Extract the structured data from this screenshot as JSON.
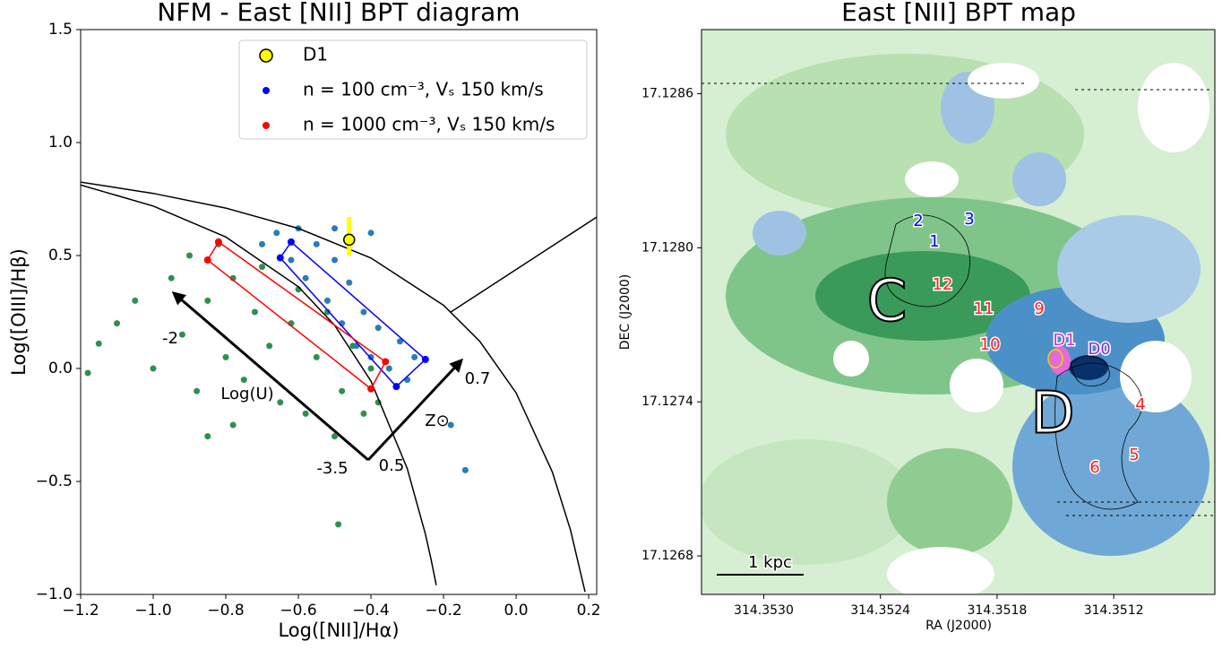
{
  "chart_data": [
    {
      "type": "scatter",
      "title": "NFM - East [NII] BPT diagram",
      "x_label": "Log([NII]/Hα)",
      "y_label": "Log([OIII]/Hβ)",
      "xlim": [
        -1.2,
        0.222
      ],
      "ylim": [
        -1.0,
        1.5
      ],
      "xticks": [
        {
          "value": -1.2,
          "label": "−1.2"
        },
        {
          "value": -1.0,
          "label": "−1.0"
        },
        {
          "value": -0.8,
          "label": "−0.8"
        },
        {
          "value": -0.6,
          "label": "−0.6"
        },
        {
          "value": -0.4,
          "label": "−0.4"
        },
        {
          "value": -0.2,
          "label": "−0.2"
        },
        {
          "value": 0.0,
          "label": "0.0"
        },
        0.2
      ],
      "yticks": [
        {
          "value": -1.0,
          "label": "−1.0"
        },
        {
          "value": -0.5,
          "label": "−0.5"
        },
        {
          "value": 0.0,
          "label": "0.0"
        },
        0.5,
        {
          "value": 1.0,
          "label": "1.0"
        },
        1.5
      ],
      "legend": "upper right",
      "curves": [
        {
          "color": "#000000",
          "x": [
            -1.2,
            -1.0,
            -0.8,
            -0.6,
            -0.4,
            -0.2,
            -0.1,
            0.0,
            0.1,
            0.15,
            0.19
          ],
          "values": [
            0.825,
            0.775,
            0.71,
            0.62,
            0.489,
            0.28,
            0.12,
            -0.108,
            -0.459,
            -0.716,
            -0.989
          ]
        },
        {
          "color": "#000000",
          "x": [
            -1.2,
            -1.0,
            -0.8,
            -0.6,
            -0.5,
            -0.4,
            -0.3,
            -0.25,
            -0.235,
            -0.22
          ],
          "values": [
            0.812,
            0.719,
            0.582,
            0.362,
            0.191,
            -0.056,
            -0.443,
            -0.733,
            -0.84,
            -0.959
          ]
        },
        {
          "color": "#000000",
          "x": [
            -0.18,
            0.222
          ],
          "values": [
            0.25,
            0.67
          ]
        }
      ],
      "series": [
        {
          "color": "#2f8f4e",
          "radius": 3.5,
          "x": [
            -1.15,
            -1.1,
            -1.05,
            -1.0,
            -0.95,
            -0.92,
            -0.9,
            -0.88,
            -0.85,
            -0.82,
            -0.8,
            -0.78,
            -0.75,
            -0.72,
            -0.7,
            -0.68,
            -0.65,
            -0.62,
            -0.6,
            -0.58,
            -0.55,
            -0.52,
            -0.5,
            -0.48,
            -0.45,
            -0.42,
            -0.4,
            -0.38,
            -0.85,
            -0.49,
            -1.18,
            -0.78
          ],
          "values": [
            0.11,
            0.2,
            0.3,
            0.0,
            0.4,
            0.15,
            0.5,
            -0.1,
            0.3,
            0.55,
            0.05,
            0.4,
            -0.05,
            0.25,
            0.45,
            0.1,
            -0.15,
            0.2,
            0.35,
            -0.2,
            0.05,
            0.25,
            -0.3,
            -0.1,
            0.1,
            -0.2,
            0.0,
            -0.15,
            -0.3,
            -0.69,
            -0.02,
            -0.25
          ]
        },
        {
          "color": "#2b7bb5",
          "radius": 3.5,
          "x": [
            -0.7,
            -0.66,
            -0.62,
            -0.6,
            -0.58,
            -0.55,
            -0.52,
            -0.5,
            -0.48,
            -0.46,
            -0.44,
            -0.42,
            -0.4,
            -0.38,
            -0.35,
            -0.32,
            -0.3,
            -0.28,
            -0.18,
            -0.14,
            -0.4,
            -0.5
          ],
          "values": [
            0.55,
            0.6,
            0.48,
            0.62,
            0.4,
            0.55,
            0.3,
            0.48,
            0.2,
            0.38,
            0.1,
            0.25,
            0.05,
            0.18,
            0.0,
            0.12,
            -0.05,
            0.05,
            -0.25,
            -0.45,
            0.6,
            0.62
          ]
        },
        {
          "name": "n = 100 cm⁻³, Vₛ 150 km/s",
          "color": "#0000ff",
          "radius": 4,
          "polygon": true,
          "x": [
            -0.62,
            -0.25,
            -0.33,
            -0.65
          ],
          "values": [
            0.56,
            0.04,
            -0.08,
            0.49
          ]
        },
        {
          "name": "n = 1000 cm⁻³, Vₛ 150 km/s",
          "color": "#ff0000",
          "radius": 4,
          "polygon": true,
          "x": [
            -0.82,
            -0.36,
            -0.4,
            -0.85
          ],
          "values": [
            0.56,
            0.03,
            -0.09,
            0.48
          ]
        },
        {
          "name": "D1",
          "color": "#ffff00",
          "radius": 6,
          "outline": "#000000",
          "x": [
            -0.46
          ],
          "values": [
            0.57
          ],
          "yerr_low": [
            0.07
          ],
          "yerr_high": [
            0.1
          ]
        }
      ],
      "annotations": [
        "-2",
        "Log(U)",
        "-3.5",
        "0.5",
        "0.7",
        "Z⊙"
      ]
    },
    {
      "type": "map",
      "title": "East [NII] BPT map",
      "x_label": "RA (J2000)",
      "y_label": "DEC (J2000)",
      "xlim": [
        314.35332,
        314.35068
      ],
      "ylim": [
        17.12665,
        17.12885
      ],
      "xticks": [
        {
          "value": 314.353,
          "label": "314.3530"
        },
        314.3524,
        314.3518,
        314.3512
      ],
      "yticks": [
        17.1268,
        17.1274,
        {
          "value": 17.128,
          "label": "17.1280"
        },
        17.1286
      ],
      "annotations": [
        {
          "text": "2",
          "color": "#0000ff"
        },
        {
          "text": "3",
          "color": "#0000ff"
        },
        {
          "text": "1",
          "color": "#0000ff"
        },
        {
          "text": "12",
          "color": "#ff2020"
        },
        {
          "text": "11",
          "color": "#ff2020"
        },
        {
          "text": "9",
          "color": "#ff2020"
        },
        {
          "text": "10",
          "color": "#ff2020"
        },
        {
          "text": "D1",
          "color": "#cc33cc"
        },
        {
          "text": "D0",
          "color": "#8a2be2"
        },
        {
          "text": "4",
          "color": "#ff2020"
        },
        {
          "text": "5",
          "color": "#ff2020"
        },
        {
          "text": "6",
          "color": "#ff2020"
        },
        {
          "text": "1 kpc",
          "color": "#000000"
        }
      ],
      "region_labels": [
        "C",
        "D"
      ]
    }
  ]
}
